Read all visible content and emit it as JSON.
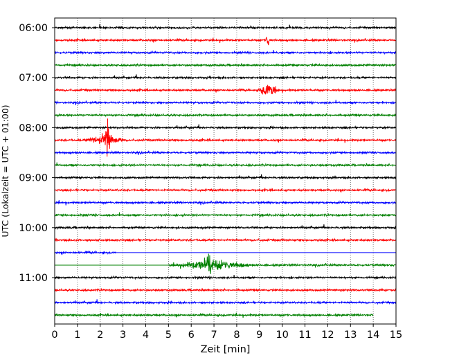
{
  "chart_data": {
    "type": "line",
    "title": "",
    "xlabel": "Zeit  [min]",
    "ylabel": "UTC (Lokalzeit = UTC + 01:00)",
    "xlim": [
      0,
      15
    ],
    "x_ticks": [
      "0",
      "1",
      "2",
      "3",
      "4",
      "5",
      "6",
      "7",
      "8",
      "9",
      "10",
      "11",
      "12",
      "13",
      "14",
      "15"
    ],
    "y_ticks": [
      "06:00",
      "07:00",
      "08:00",
      "09:00",
      "10:00",
      "11:00"
    ],
    "grid": "vertical dotted at each minute",
    "row_colors": [
      "#000000",
      "#ff0000",
      "#0000ff",
      "#008000"
    ],
    "trace_count": 24,
    "first_trace_utc": "06:00",
    "minutes_per_trace": 15,
    "events": [
      {
        "row": 1,
        "start": 9.25,
        "end": 9.45,
        "amp": 1.5
      },
      {
        "row": 5,
        "start": 8.9,
        "end": 9.9,
        "amp": 1.0
      },
      {
        "row": 9,
        "start": 1.3,
        "end": 3.1,
        "amp": 1.0
      },
      {
        "row": 9,
        "start": 2.2,
        "end": 2.45,
        "amp": 4.0
      },
      {
        "row": 19,
        "start": 5.0,
        "end": 8.8,
        "amp": 0.8
      },
      {
        "row": 19,
        "start": 6.55,
        "end": 7.0,
        "amp": 1.6
      }
    ],
    "gaps": [
      {
        "row": 18,
        "from": 2.7,
        "flatline": true
      },
      {
        "row": 19,
        "until": 5.0,
        "flatline": true
      },
      {
        "row": 23,
        "from": 14.0,
        "flatline": false
      }
    ]
  }
}
